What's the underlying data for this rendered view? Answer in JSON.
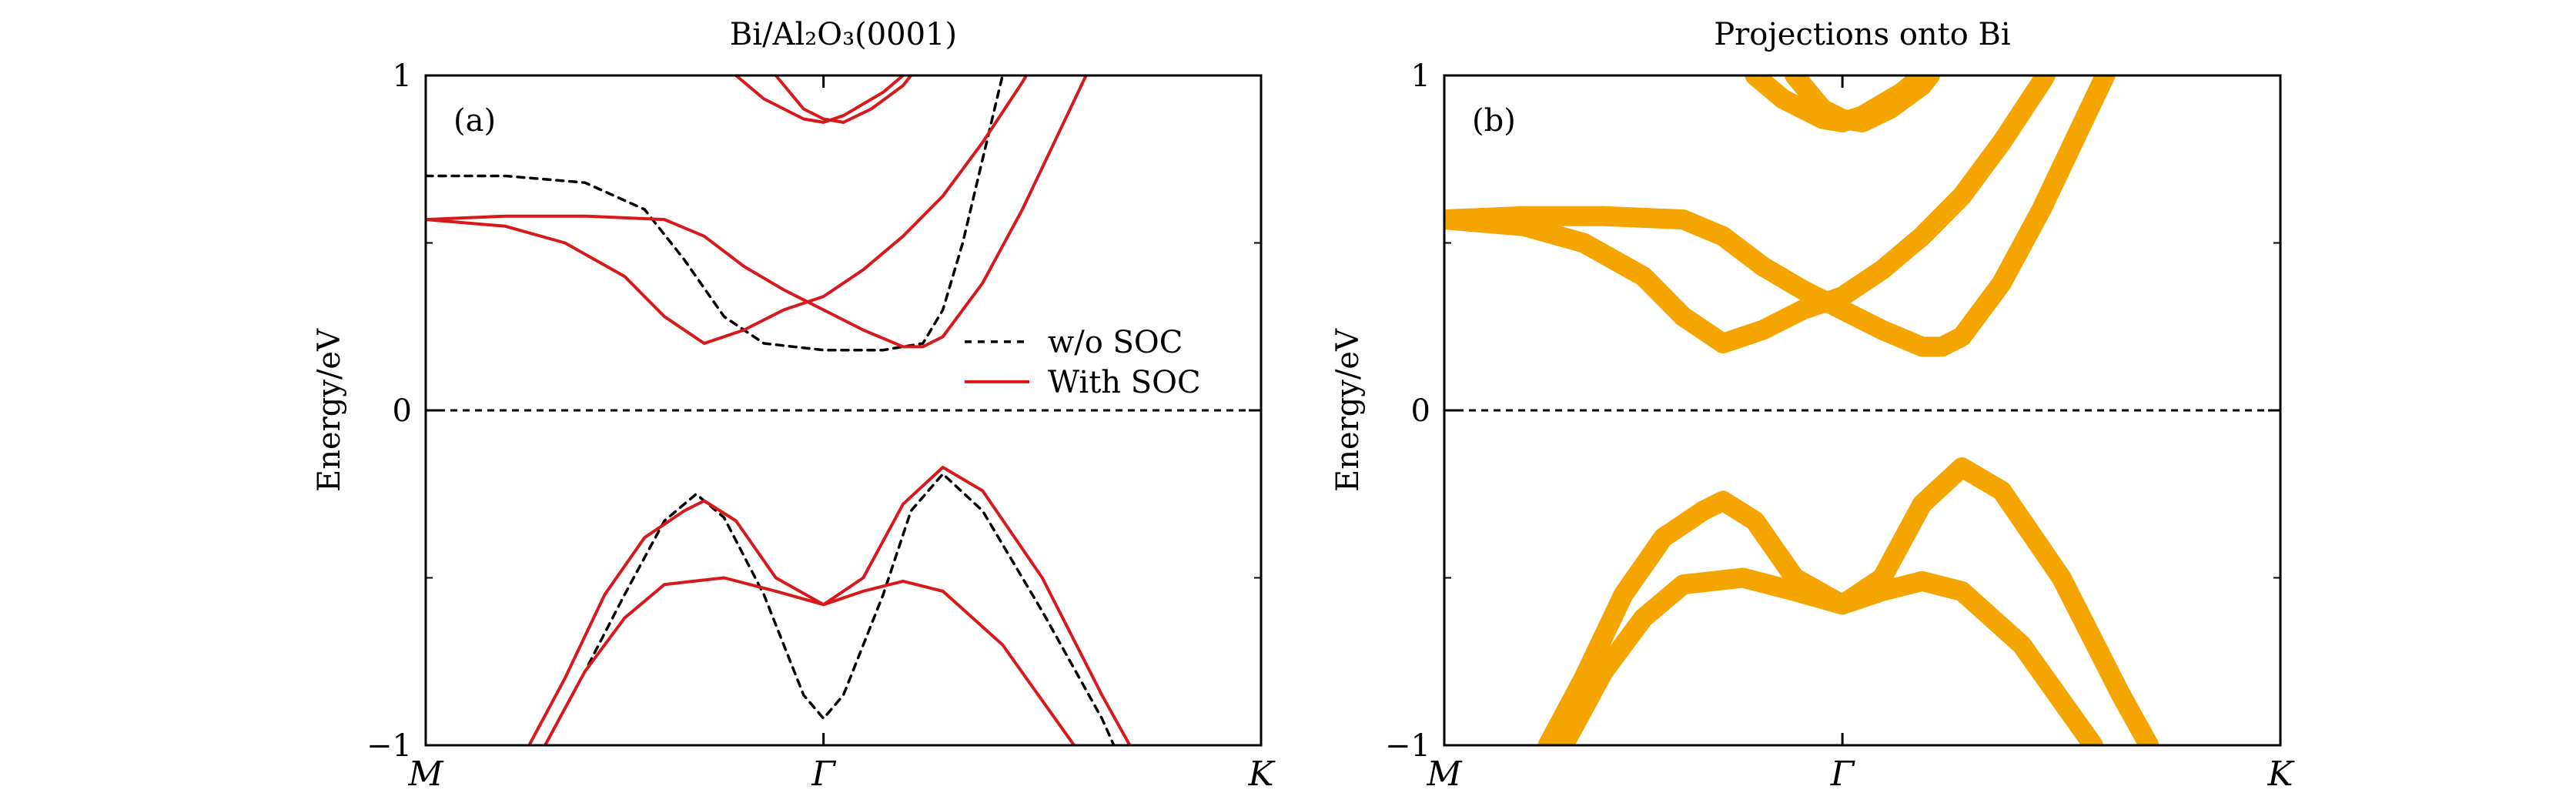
{
  "chart_data": [
    {
      "type": "line",
      "title": "Bi/Al₂O₃(0001)",
      "panel_label": "(a)",
      "ylabel": "Energy/eV",
      "xlabel": "",
      "x_ticks": [
        "M",
        "Γ",
        "K"
      ],
      "x_tick_values": [
        0,
        1,
        2.1
      ],
      "y_ticks": [
        "−1",
        "0",
        "1"
      ],
      "y_tick_values": [
        -1,
        0,
        1
      ],
      "xlim": [
        0,
        2.1
      ],
      "ylim": [
        -1,
        1
      ],
      "zero_line": 0,
      "legend": {
        "placement": "right-middle",
        "entries": [
          "w/o SOC",
          "With SOC"
        ]
      },
      "series": [
        {
          "name": "w/o SOC",
          "style": "dashed",
          "color": "#000000",
          "lines": [
            [
              [
                0,
                0.7
              ],
              [
                0.2,
                0.7
              ],
              [
                0.4,
                0.68
              ],
              [
                0.55,
                0.6
              ],
              [
                0.65,
                0.45
              ],
              [
                0.75,
                0.28
              ],
              [
                0.85,
                0.2
              ],
              [
                1.0,
                0.18
              ],
              [
                1.15,
                0.18
              ],
              [
                1.25,
                0.2
              ],
              [
                1.3,
                0.3
              ],
              [
                1.35,
                0.5
              ],
              [
                1.4,
                0.75
              ],
              [
                1.45,
                1.0
              ]
            ],
            [
              [
                0.3,
                -1.0
              ],
              [
                0.4,
                -0.78
              ],
              [
                0.5,
                -0.55
              ],
              [
                0.6,
                -0.33
              ],
              [
                0.68,
                -0.25
              ],
              [
                0.75,
                -0.32
              ],
              [
                0.85,
                -0.55
              ],
              [
                0.95,
                -0.85
              ],
              [
                1.0,
                -0.92
              ],
              [
                1.05,
                -0.85
              ],
              [
                1.15,
                -0.55
              ],
              [
                1.22,
                -0.3
              ],
              [
                1.3,
                -0.19
              ],
              [
                1.4,
                -0.3
              ],
              [
                1.55,
                -0.6
              ],
              [
                1.7,
                -0.92
              ],
              [
                1.73,
                -1.0
              ]
            ]
          ]
        },
        {
          "name": "With SOC",
          "style": "solid",
          "color": "#d7191c",
          "lines": [
            [
              [
                0,
                0.57
              ],
              [
                0.2,
                0.58
              ],
              [
                0.4,
                0.58
              ],
              [
                0.6,
                0.57
              ],
              [
                0.7,
                0.52
              ],
              [
                0.8,
                0.43
              ],
              [
                0.9,
                0.36
              ],
              [
                1.0,
                0.3
              ],
              [
                1.1,
                0.24
              ],
              [
                1.2,
                0.19
              ],
              [
                1.25,
                0.19
              ],
              [
                1.3,
                0.22
              ],
              [
                1.4,
                0.38
              ],
              [
                1.5,
                0.6
              ],
              [
                1.6,
                0.85
              ],
              [
                1.66,
                1.0
              ]
            ],
            [
              [
                0,
                0.57
              ],
              [
                0.2,
                0.55
              ],
              [
                0.35,
                0.5
              ],
              [
                0.5,
                0.4
              ],
              [
                0.6,
                0.28
              ],
              [
                0.7,
                0.2
              ],
              [
                0.8,
                0.24
              ],
              [
                0.9,
                0.3
              ],
              [
                1.0,
                0.34
              ],
              [
                1.1,
                0.42
              ],
              [
                1.2,
                0.52
              ],
              [
                1.3,
                0.64
              ],
              [
                1.4,
                0.8
              ],
              [
                1.5,
                0.98
              ],
              [
                1.51,
                1.0
              ]
            ],
            [
              [
                0.78,
                1.0
              ],
              [
                0.85,
                0.93
              ],
              [
                0.95,
                0.87
              ],
              [
                1.0,
                0.86
              ],
              [
                1.05,
                0.88
              ],
              [
                1.15,
                0.95
              ],
              [
                1.2,
                1.0
              ]
            ],
            [
              [
                0.88,
                1.0
              ],
              [
                0.95,
                0.9
              ],
              [
                1.0,
                0.87
              ],
              [
                1.05,
                0.86
              ],
              [
                1.12,
                0.9
              ],
              [
                1.2,
                0.97
              ],
              [
                1.22,
                1.0
              ]
            ],
            [
              [
                0.26,
                -1.0
              ],
              [
                0.35,
                -0.8
              ],
              [
                0.45,
                -0.55
              ],
              [
                0.55,
                -0.38
              ],
              [
                0.65,
                -0.3
              ],
              [
                0.7,
                -0.27
              ],
              [
                0.78,
                -0.33
              ],
              [
                0.88,
                -0.5
              ],
              [
                1.0,
                -0.58
              ],
              [
                1.1,
                -0.5
              ],
              [
                1.2,
                -0.28
              ],
              [
                1.3,
                -0.17
              ],
              [
                1.4,
                -0.24
              ],
              [
                1.55,
                -0.5
              ],
              [
                1.7,
                -0.85
              ],
              [
                1.77,
                -1.0
              ]
            ],
            [
              [
                0.3,
                -1.0
              ],
              [
                0.4,
                -0.78
              ],
              [
                0.5,
                -0.62
              ],
              [
                0.6,
                -0.52
              ],
              [
                0.75,
                -0.5
              ],
              [
                0.88,
                -0.54
              ],
              [
                1.0,
                -0.58
              ],
              [
                1.1,
                -0.54
              ],
              [
                1.2,
                -0.51
              ],
              [
                1.3,
                -0.54
              ],
              [
                1.45,
                -0.7
              ],
              [
                1.6,
                -0.95
              ],
              [
                1.63,
                -1.0
              ]
            ]
          ]
        }
      ]
    },
    {
      "type": "scatter",
      "title": "Projections onto Bi",
      "panel_label": "(b)",
      "ylabel": "Energy/eV",
      "xlabel": "",
      "x_ticks": [
        "M",
        "Γ",
        "K"
      ],
      "x_tick_values": [
        0,
        1,
        2.1
      ],
      "y_ticks": [
        "−1",
        "0",
        "1"
      ],
      "y_tick_values": [
        -1,
        0,
        1
      ],
      "xlim": [
        0,
        2.1
      ],
      "ylim": [
        -1,
        1
      ],
      "zero_line": 0,
      "series": [
        {
          "style": "thick",
          "color": "#f5a500",
          "lines": [
            [
              [
                0,
                0.57
              ],
              [
                0.2,
                0.58
              ],
              [
                0.4,
                0.58
              ],
              [
                0.6,
                0.57
              ],
              [
                0.7,
                0.52
              ],
              [
                0.8,
                0.43
              ],
              [
                0.9,
                0.36
              ],
              [
                1.0,
                0.3
              ],
              [
                1.1,
                0.24
              ],
              [
                1.2,
                0.19
              ],
              [
                1.25,
                0.19
              ],
              [
                1.3,
                0.22
              ],
              [
                1.4,
                0.38
              ],
              [
                1.5,
                0.6
              ],
              [
                1.6,
                0.85
              ],
              [
                1.66,
                1.0
              ]
            ],
            [
              [
                0,
                0.57
              ],
              [
                0.2,
                0.55
              ],
              [
                0.35,
                0.5
              ],
              [
                0.5,
                0.4
              ],
              [
                0.6,
                0.28
              ],
              [
                0.7,
                0.2
              ],
              [
                0.8,
                0.24
              ],
              [
                0.9,
                0.3
              ],
              [
                1.0,
                0.34
              ],
              [
                1.1,
                0.42
              ],
              [
                1.2,
                0.52
              ],
              [
                1.3,
                0.64
              ],
              [
                1.4,
                0.8
              ],
              [
                1.5,
                0.98
              ],
              [
                1.51,
                1.0
              ]
            ],
            [
              [
                0.78,
                1.0
              ],
              [
                0.85,
                0.93
              ],
              [
                0.95,
                0.87
              ],
              [
                1.0,
                0.86
              ],
              [
                1.05,
                0.88
              ],
              [
                1.15,
                0.95
              ],
              [
                1.2,
                1.0
              ]
            ],
            [
              [
                0.88,
                1.0
              ],
              [
                0.95,
                0.9
              ],
              [
                1.0,
                0.87
              ],
              [
                1.05,
                0.86
              ],
              [
                1.12,
                0.9
              ],
              [
                1.2,
                0.97
              ],
              [
                1.22,
                1.0
              ]
            ],
            [
              [
                0.26,
                -1.0
              ],
              [
                0.35,
                -0.8
              ],
              [
                0.45,
                -0.55
              ],
              [
                0.55,
                -0.38
              ],
              [
                0.65,
                -0.3
              ],
              [
                0.7,
                -0.27
              ],
              [
                0.78,
                -0.33
              ],
              [
                0.88,
                -0.5
              ],
              [
                1.0,
                -0.58
              ],
              [
                1.1,
                -0.5
              ],
              [
                1.2,
                -0.28
              ],
              [
                1.3,
                -0.17
              ],
              [
                1.4,
                -0.24
              ],
              [
                1.55,
                -0.5
              ],
              [
                1.7,
                -0.85
              ],
              [
                1.77,
                -1.0
              ]
            ],
            [
              [
                0.3,
                -1.0
              ],
              [
                0.4,
                -0.78
              ],
              [
                0.5,
                -0.62
              ],
              [
                0.6,
                -0.52
              ],
              [
                0.75,
                -0.5
              ],
              [
                0.88,
                -0.54
              ],
              [
                1.0,
                -0.58
              ],
              [
                1.1,
                -0.54
              ],
              [
                1.2,
                -0.51
              ],
              [
                1.3,
                -0.54
              ],
              [
                1.45,
                -0.7
              ],
              [
                1.6,
                -0.95
              ],
              [
                1.63,
                -1.0
              ]
            ]
          ]
        }
      ]
    }
  ]
}
